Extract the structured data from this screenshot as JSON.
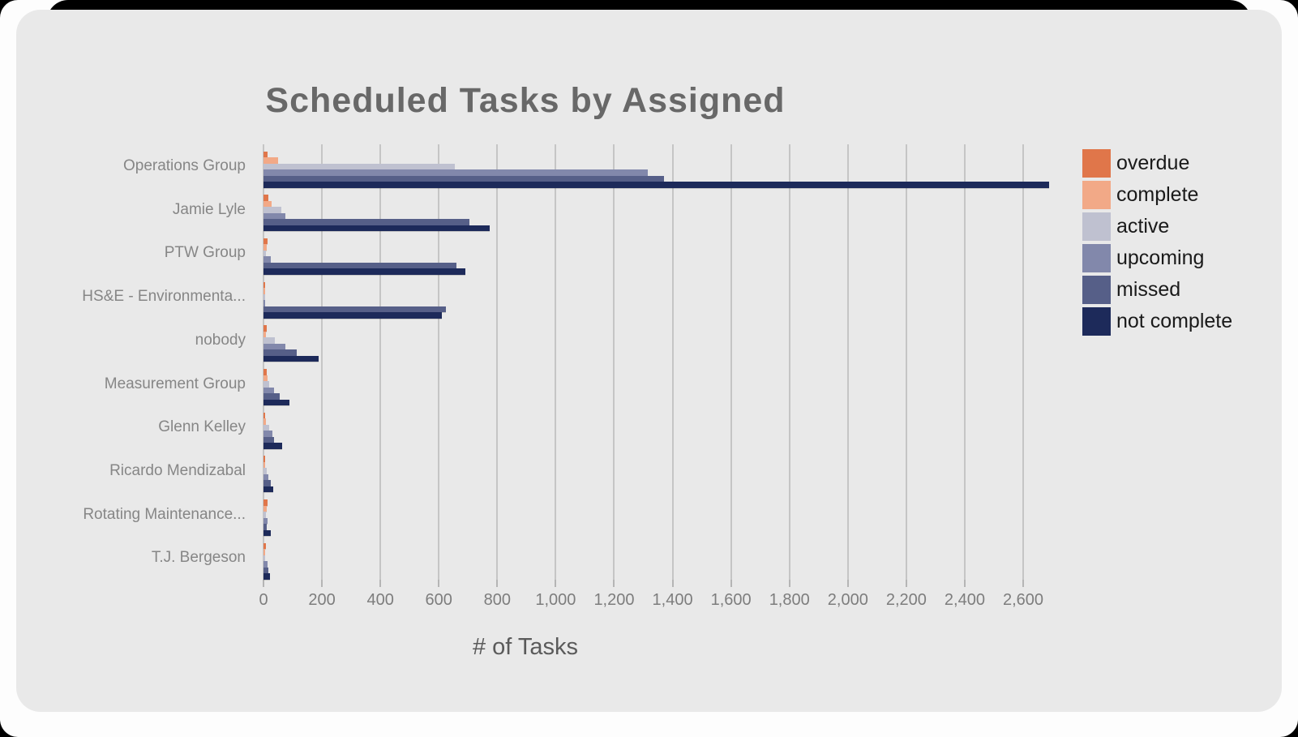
{
  "frame": {
    "card_color": "#e9e9e9",
    "frame_color": "#000000",
    "page_color": "#fdfdfd"
  },
  "chart_data": {
    "type": "bar",
    "orientation": "horizontal",
    "title": "Scheduled Tasks by Assigned",
    "xlabel": "# of Tasks",
    "ylabel": "",
    "xlim": [
      0,
      2600
    ],
    "grid": "vertical gridlines every 200",
    "legend_position": "right",
    "categories": [
      "Operations Group",
      "Jamie Lyle",
      "PTW Group",
      "HS&E - Environmenta...",
      "nobody",
      "Measurement Group",
      "Glenn Kelley",
      "Ricardo Mendizabal",
      "Rotating Maintenance...",
      "T.J. Bergeson"
    ],
    "series": [
      {
        "name": "overdue",
        "color": "#e0764a",
        "values": [
          15,
          18,
          15,
          5,
          10,
          10,
          6,
          4,
          15,
          8
        ]
      },
      {
        "name": "complete",
        "color": "#f2a987",
        "values": [
          50,
          28,
          10,
          3,
          8,
          15,
          8,
          4,
          12,
          5
        ]
      },
      {
        "name": "active",
        "color": "#bfc1d0",
        "values": [
          655,
          60,
          8,
          3,
          40,
          20,
          20,
          10,
          8,
          6
        ]
      },
      {
        "name": "upcoming",
        "color": "#8288ab",
        "values": [
          1315,
          75,
          25,
          5,
          75,
          35,
          30,
          17,
          15,
          14
        ]
      },
      {
        "name": "missed",
        "color": "#565f88",
        "values": [
          1370,
          705,
          660,
          625,
          115,
          55,
          35,
          25,
          10,
          16
        ]
      },
      {
        "name": "not complete",
        "color": "#1d2a5a",
        "values": [
          2690,
          775,
          690,
          610,
          190,
          90,
          65,
          32,
          25,
          23
        ]
      }
    ],
    "x_ticks": [
      0,
      200,
      400,
      600,
      800,
      1000,
      1200,
      1400,
      1600,
      1800,
      2000,
      2200,
      2400,
      2600
    ],
    "x_tick_labels": [
      "0",
      "200",
      "400",
      "600",
      "800",
      "1,000",
      "1,200",
      "1,400",
      "1,600",
      "1,800",
      "2,000",
      "2,200",
      "2,400",
      "2,600"
    ]
  }
}
